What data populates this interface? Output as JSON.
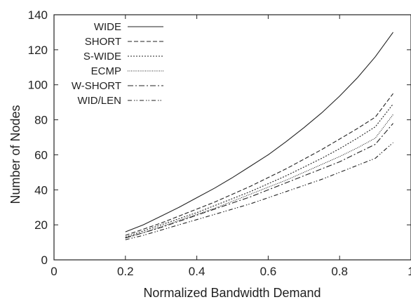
{
  "chart_data": {
    "type": "line",
    "xlabel": "Normalized Bandwidth Demand",
    "ylabel": "Number of Nodes",
    "xlim": [
      0,
      1
    ],
    "ylim": [
      0,
      140
    ],
    "x_ticks": [
      0,
      0.2,
      0.4,
      0.6,
      0.8,
      1
    ],
    "x_tick_labels": [
      "0",
      "0.2",
      "0.4",
      "0.6",
      "0.8",
      "1"
    ],
    "y_ticks": [
      0,
      20,
      40,
      60,
      80,
      100,
      120,
      140
    ],
    "y_tick_labels": [
      "0",
      "20",
      "40",
      "60",
      "80",
      "100",
      "120",
      "140"
    ],
    "grid": false,
    "legend_position": "top-left",
    "x": [
      0.2,
      0.25,
      0.3,
      0.35,
      0.4,
      0.45,
      0.5,
      0.55,
      0.6,
      0.65,
      0.7,
      0.75,
      0.8,
      0.85,
      0.9,
      0.95
    ],
    "series": [
      {
        "name": "WIDE",
        "dash": "solid",
        "values": [
          16,
          20,
          25,
          30,
          35.5,
          41,
          47,
          53.5,
          60,
          67.5,
          75.5,
          84,
          93.5,
          104,
          116,
          130
        ]
      },
      {
        "name": "SHORT",
        "dash": "dashed",
        "values": [
          14,
          17.5,
          21,
          25,
          29,
          33,
          37.5,
          42,
          47,
          52,
          57.5,
          63,
          69,
          75,
          81.5,
          95
        ]
      },
      {
        "name": "S-WIDE",
        "dash": "dotted",
        "values": [
          13,
          16.5,
          20,
          23.5,
          27,
          31,
          35,
          39,
          43.5,
          48,
          53,
          58,
          63.5,
          69.5,
          76,
          89
        ]
      },
      {
        "name": "ECMP",
        "dash": "fine-dotted",
        "values": [
          12.5,
          15.5,
          19,
          22.5,
          26,
          29.5,
          33.5,
          37.5,
          41.5,
          45.5,
          50,
          54.5,
          59,
          64,
          69.5,
          83
        ]
      },
      {
        "name": "W-SHORT",
        "dash": "dash-dot",
        "values": [
          12.5,
          15.5,
          18.5,
          22,
          25.5,
          29,
          32.5,
          36,
          40,
          44,
          48,
          52,
          56,
          61,
          66,
          78
        ]
      },
      {
        "name": "WID/LEN",
        "dash": "dash-dot-dot",
        "values": [
          11.5,
          14,
          17,
          20,
          23,
          26,
          29,
          32,
          35.5,
          39,
          42.5,
          46,
          50,
          54,
          58,
          67
        ]
      }
    ]
  }
}
